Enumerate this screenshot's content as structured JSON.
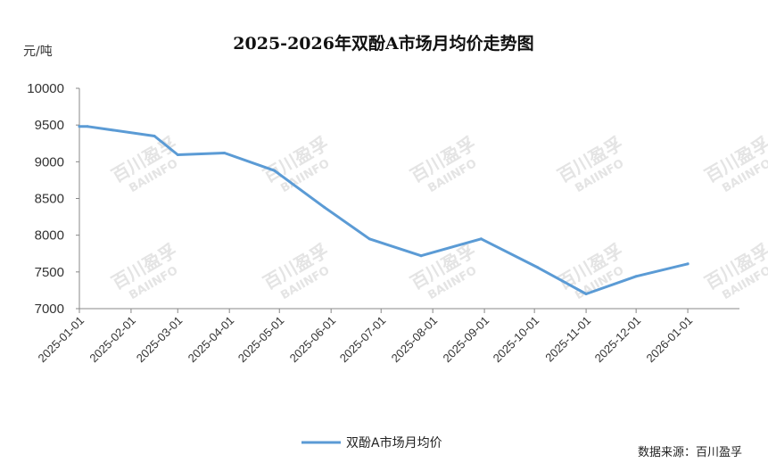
{
  "chart_data": {
    "type": "line",
    "title": "2025-2026年双酚A市场月均价走势图",
    "ylabel": "元/吨",
    "xlabel": "",
    "ylim": [
      7000,
      10000
    ],
    "yticks": [
      10000,
      9500,
      9000,
      8500,
      8000,
      7500,
      7000
    ],
    "categories": [
      "2025-01-01",
      "2025-02-01",
      "2025-03-01",
      "2025-04-01",
      "2025-05-01",
      "2025-06-01",
      "2025-07-01",
      "2025-08-01",
      "2025-09-01",
      "2025-10-01",
      "2025-11-01",
      "2025-12-01",
      "2026-01-01"
    ],
    "series": [
      {
        "name": "双酚A市场月均价",
        "color": "#5b9bd5",
        "x": [
          "2025-01-01",
          "2025-01-06",
          "2025-02-15",
          "2025-03-01",
          "2025-03-29",
          "2025-04-28",
          "2025-05-28",
          "2025-06-24",
          "2025-07-25",
          "2025-08-30",
          "2025-10-03",
          "2025-11-01",
          "2025-12-01",
          "2026-01-01"
        ],
        "values": [
          9480,
          9480,
          9350,
          9095,
          9120,
          8880,
          8380,
          7950,
          7720,
          7950,
          7560,
          7200,
          7440,
          7610
        ]
      }
    ],
    "grid": false,
    "legend_position": "bottom"
  },
  "legend": {
    "label": "双酚A市场月均价"
  },
  "source": "数据来源：百川盈孚",
  "watermark": {
    "cn": "百川盈孚",
    "en": "BAIINFO"
  }
}
